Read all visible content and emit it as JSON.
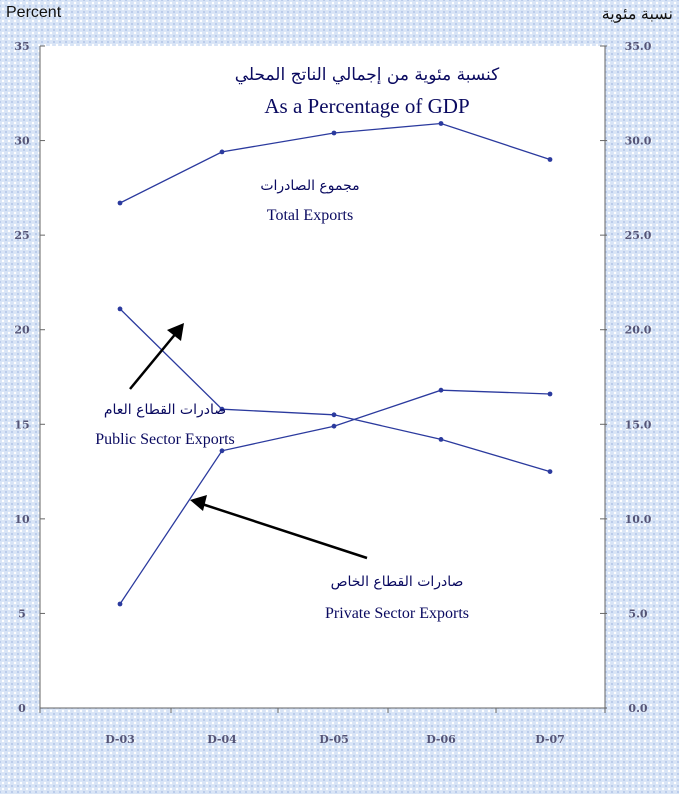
{
  "corner_left": "Percent",
  "corner_right": "نسبة مئوية",
  "chart_data": {
    "type": "line",
    "title_ar": "كنسبة مئوية من إجمالي الناتج المحلي",
    "title": "As a Percentage of GDP",
    "categories": [
      "D-03",
      "D-04",
      "D-05",
      "D-06",
      "D-07"
    ],
    "left_ticks": [
      "35",
      "30",
      "25",
      "20",
      "15",
      "10",
      "5",
      "0"
    ],
    "right_ticks": [
      "35.0",
      "30.0",
      "25.0",
      "20.0",
      "15.0",
      "10.0",
      "5.0",
      "0.0"
    ],
    "ylim": [
      0,
      35
    ],
    "grid": false,
    "series": [
      {
        "name_ar": "مجموع الصادرات",
        "name": "Total Exports",
        "values": [
          26.7,
          29.4,
          30.4,
          30.9,
          29.0
        ]
      },
      {
        "name_ar": "صادرات القطاع العام",
        "name": "Public Sector Exports",
        "values": [
          21.1,
          15.8,
          15.5,
          14.2,
          12.5
        ]
      },
      {
        "name_ar": "صادرات القطاع الخاص",
        "name": "Private Sector Exports",
        "values": [
          5.5,
          13.6,
          14.9,
          16.8,
          16.6
        ]
      }
    ],
    "line_color": "#2b3a9e"
  }
}
